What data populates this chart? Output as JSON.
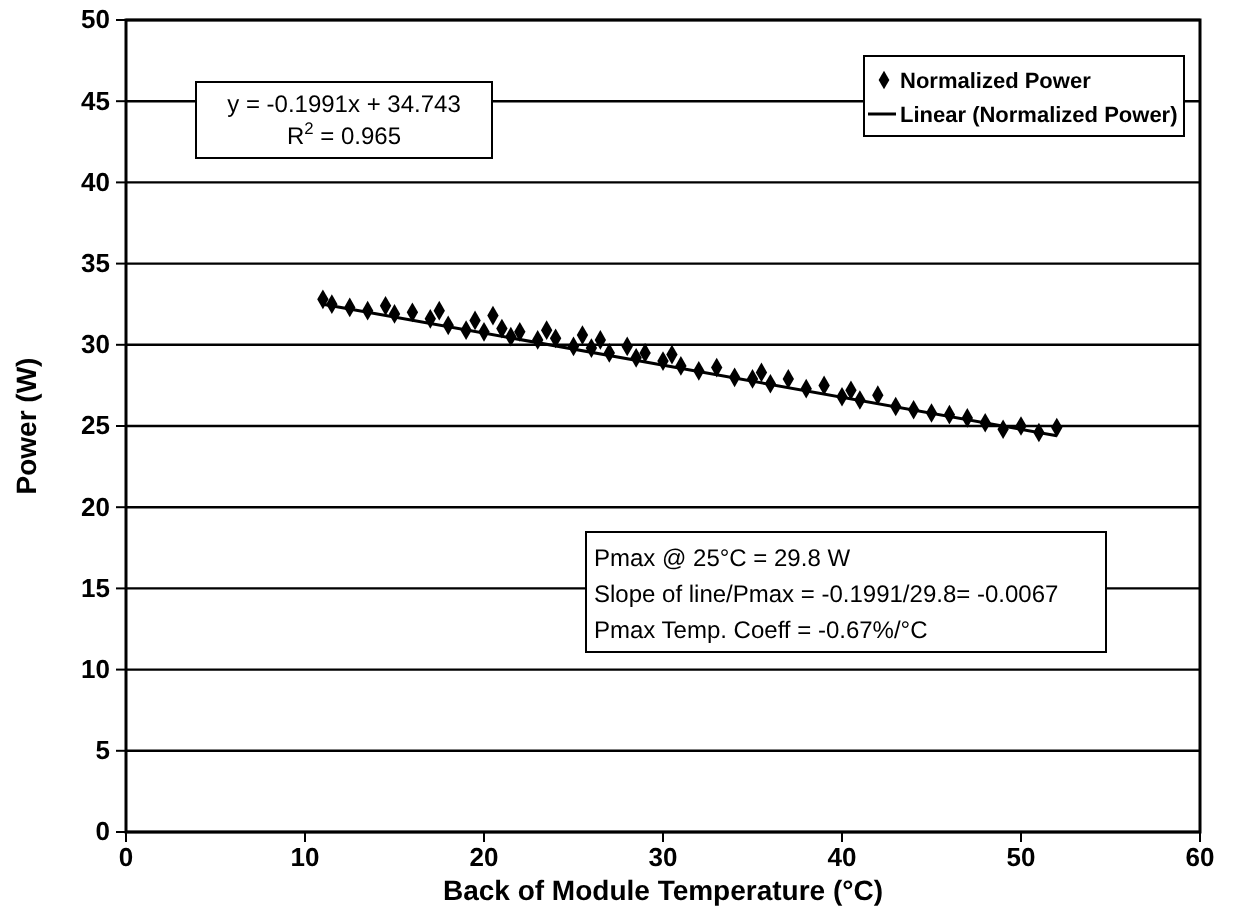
{
  "chart_data": {
    "type": "scatter",
    "xlabel": "Back of Module Temperature (°C)",
    "ylabel": "Power (W)",
    "xlim": [
      0,
      60
    ],
    "xticks": [
      0,
      10,
      20,
      30,
      40,
      50,
      60
    ],
    "ylim": [
      0,
      50
    ],
    "yticks": [
      0,
      5,
      10,
      15,
      20,
      25,
      30,
      35,
      40,
      45,
      50
    ],
    "grid": "y",
    "legend": "top right",
    "series": [
      {
        "name": "Normalized Power",
        "marker": "diamond",
        "color": "#000000",
        "x": [
          11,
          11.5,
          12.5,
          13.5,
          14.5,
          15,
          16,
          17,
          17.5,
          18,
          19,
          19.5,
          20,
          20.5,
          21,
          21.5,
          22,
          23,
          23.5,
          24,
          25,
          25.5,
          26,
          26.5,
          27,
          28,
          28.5,
          29,
          30,
          30.5,
          31,
          32,
          33,
          34,
          35,
          35.5,
          36,
          37,
          38,
          39,
          40,
          40.5,
          41,
          42,
          43,
          44,
          45,
          46,
          47,
          48,
          49,
          50,
          51,
          52
        ],
        "values": [
          32.8,
          32.5,
          32.3,
          32.1,
          32.4,
          31.9,
          32.0,
          31.6,
          32.1,
          31.2,
          30.9,
          31.5,
          30.8,
          31.8,
          31.0,
          30.5,
          30.8,
          30.3,
          30.9,
          30.4,
          29.9,
          30.6,
          29.8,
          30.3,
          29.5,
          29.9,
          29.2,
          29.5,
          29.0,
          29.4,
          28.7,
          28.4,
          28.6,
          28.0,
          27.9,
          28.3,
          27.6,
          27.9,
          27.3,
          27.5,
          26.8,
          27.2,
          26.6,
          26.9,
          26.2,
          26.0,
          25.8,
          25.7,
          25.5,
          25.2,
          24.8,
          25.0,
          24.6,
          24.9
        ]
      },
      {
        "name": "Linear (Normalized Power)",
        "type": "line",
        "color": "#000000",
        "line_style": "solid",
        "x": [
          11,
          52
        ],
        "values": [
          32.5,
          24.4
        ]
      }
    ],
    "annotations": [
      "y = -0.1991x + 34.743",
      "R$^{2}$ = 0.965",
      "Pmax @ 25°C = 29.8 W",
      "Slope of line/Pmax = -0.1991/29.8= -0.0067",
      "Pmax Temp. Coeff = -0.67%/°C"
    ]
  }
}
